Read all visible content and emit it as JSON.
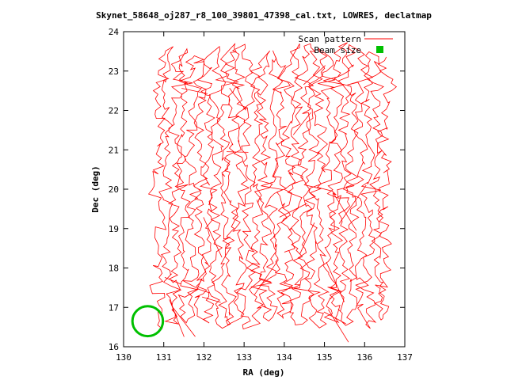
{
  "chart_data": {
    "type": "line",
    "title": "Skynet_58648_oj287_r8_100_39801_47398_cal.txt, LOWRES, declatmap",
    "xlabel": "RA (deg)",
    "ylabel": "Dec (deg)",
    "xlim": [
      130,
      137
    ],
    "ylim": [
      16,
      24
    ],
    "xticks": [
      "130",
      "131",
      "132",
      "133",
      "134",
      "135",
      "136",
      "137"
    ],
    "yticks": [
      "16",
      "17",
      "18",
      "19",
      "20",
      "21",
      "22",
      "23",
      "24"
    ],
    "grid": false,
    "legend_position": "top-right",
    "series": [
      {
        "name": "Scan pattern",
        "color": "#ff0000",
        "style": "line",
        "description_values": {
          "ra_range": [
            130.8,
            136.6
          ],
          "dec_range": [
            16.4,
            23.8
          ],
          "scan_columns_ra": [
            130.9,
            131.1,
            131.3,
            131.5,
            131.7,
            131.9,
            132.1,
            132.3,
            132.5,
            132.7,
            132.9,
            133.1,
            133.3,
            133.5,
            133.7,
            133.9,
            134.1,
            134.3,
            134.5,
            134.7,
            134.9,
            135.1,
            135.3,
            135.5,
            135.7,
            135.9,
            136.1,
            136.3,
            136.5
          ]
        }
      },
      {
        "name": "Beam size",
        "color": "#00c000",
        "style": "circle",
        "center": [
          130.6,
          16.65
        ],
        "radius_deg": 0.38
      }
    ]
  }
}
